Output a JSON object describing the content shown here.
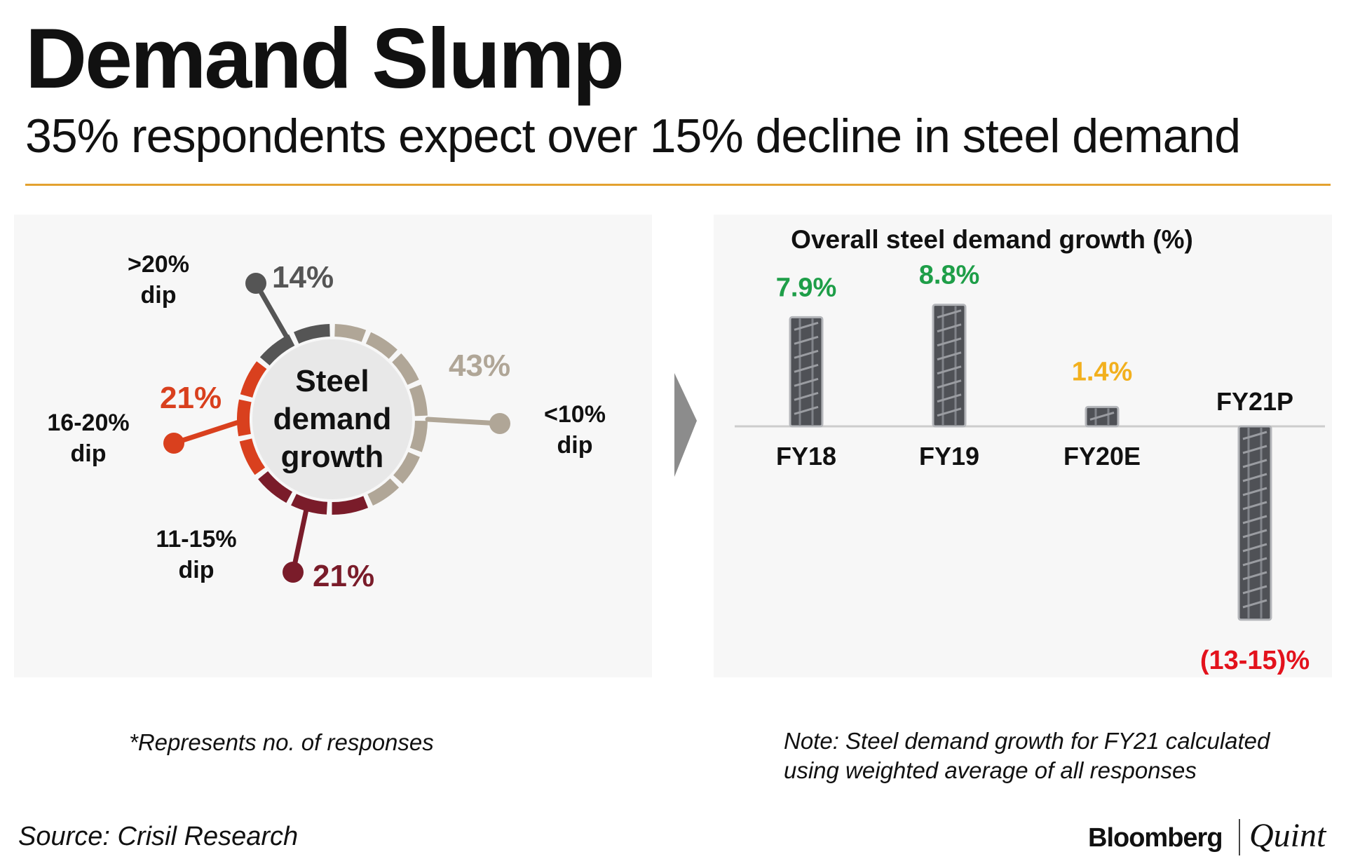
{
  "header": {
    "title": "Demand Slump",
    "subtitle": "35% respondents expect over 15% decline in steel demand"
  },
  "chart_data": [
    {
      "type": "pie",
      "title": "",
      "center_label": [
        "Steel",
        "demand",
        "growth"
      ],
      "slices": [
        {
          "label": [
            "<10%",
            "dip"
          ],
          "value": 43,
          "value_label": "43%",
          "color": "#b0a697"
        },
        {
          "label": [
            "11-15%",
            "dip"
          ],
          "value": 21,
          "value_label": "21%",
          "color": "#7a1c2a"
        },
        {
          "label": [
            "16-20%",
            "dip"
          ],
          "value": 21,
          "value_label": "21%",
          "color": "#d9401e"
        },
        {
          "label": [
            ">20%",
            "dip"
          ],
          "value": 14,
          "value_label": "14%",
          "color": "#555555"
        }
      ]
    },
    {
      "type": "bar",
      "title": "Overall steel demand growth (%)",
      "categories": [
        "FY18",
        "FY19",
        "FY20E",
        "FY21P"
      ],
      "values": [
        7.9,
        8.8,
        1.4,
        -14
      ],
      "value_labels": [
        "7.9%",
        "8.8%",
        "1.4%",
        "(13-15)%"
      ],
      "label_colors": [
        "#1e9e48",
        "#1e9e48",
        "#f2b01e",
        "#e3121c"
      ],
      "ylim": [
        -14,
        8.8
      ]
    }
  ],
  "notes": {
    "left": "*Represents no. of responses",
    "right_line1": "Note: Steel demand growth for FY21 calculated",
    "right_line2": "using weighted average of all responses"
  },
  "footer": {
    "source": "Source: Crisil Research",
    "brand_a": "Bloomberg",
    "brand_b": "Quint"
  }
}
